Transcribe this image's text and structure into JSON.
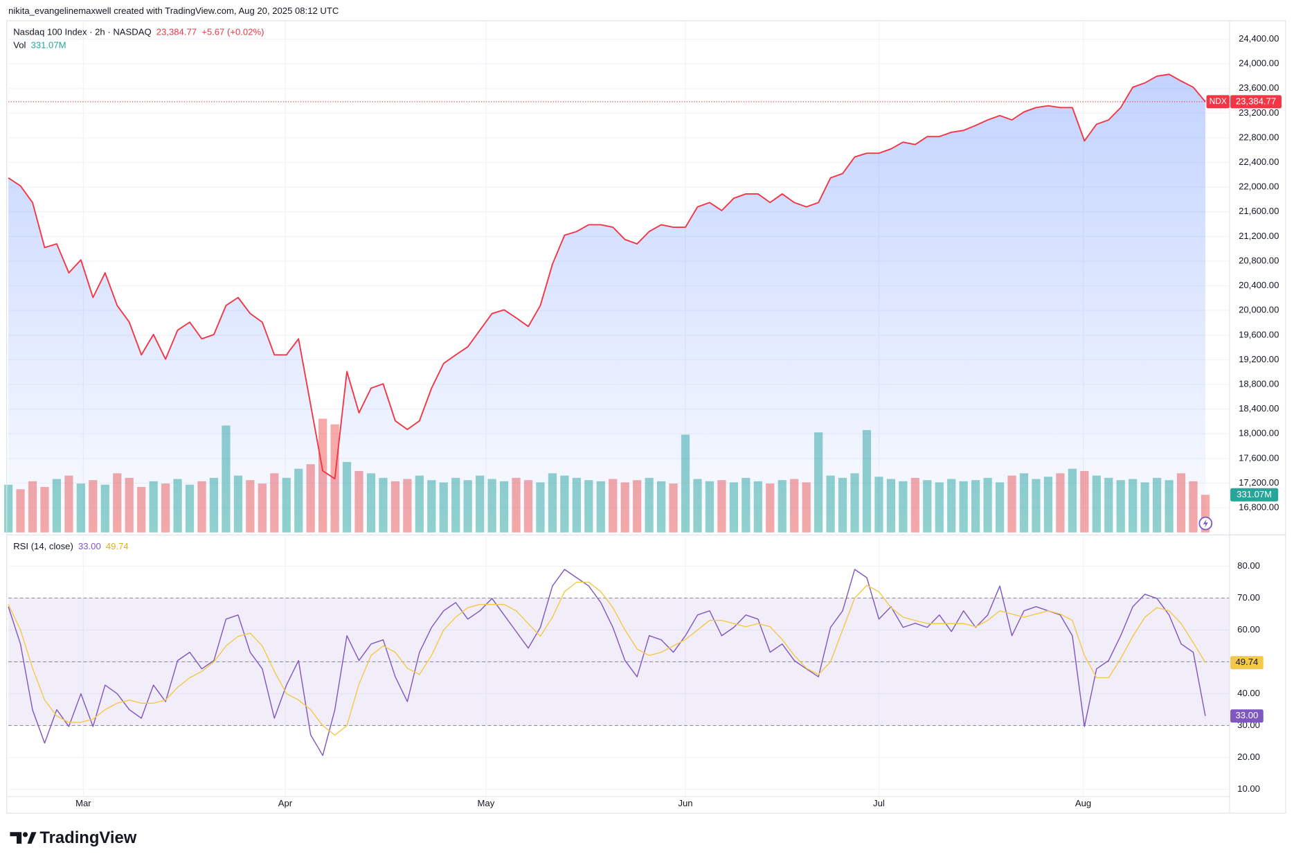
{
  "chart_data": {
    "type": "line",
    "creator": "nikita_evangelinemaxwell created with TradingView.com, Aug 20, 2025 08:12 UTC",
    "title": "Nasdaq 100 Index · 2h · NASDAQ",
    "brand": "TradingView",
    "xlim": [
      0,
      101
    ],
    "xticks": [
      {
        "value": 6.2,
        "label": "Mar"
      },
      {
        "value": 22.9,
        "label": "Apr"
      },
      {
        "value": 39.5,
        "label": "May"
      },
      {
        "value": 56.0,
        "label": "Jun"
      },
      {
        "value": 72.0,
        "label": "Jul"
      },
      {
        "value": 88.9,
        "label": "Aug"
      }
    ],
    "grid": true,
    "price": {
      "symbol": "NDX",
      "color": "#f23645",
      "area_color": "#2962ff",
      "last_label": "23,384.77",
      "change": "+5.67 (+0.02%)",
      "ylim": [
        16400,
        24700
      ],
      "yticks": [
        {
          "value": 16800,
          "label": "16,800.00"
        },
        {
          "value": 17200,
          "label": "17,200.00"
        },
        {
          "value": 17600,
          "label": "17,600.00"
        },
        {
          "value": 18000,
          "label": "18,000.00"
        },
        {
          "value": 18400,
          "label": "18,400.00"
        },
        {
          "value": 18800,
          "label": "18,800.00"
        },
        {
          "value": 19200,
          "label": "19,200.00"
        },
        {
          "value": 19600,
          "label": "19,600.00"
        },
        {
          "value": 20000,
          "label": "20,000.00"
        },
        {
          "value": 20400,
          "label": "20,400.00"
        },
        {
          "value": 20800,
          "label": "20,800.00"
        },
        {
          "value": 21200,
          "label": "21,200.00"
        },
        {
          "value": 21600,
          "label": "21,600.00"
        },
        {
          "value": 22000,
          "label": "22,000.00"
        },
        {
          "value": 22400,
          "label": "22,400.00"
        },
        {
          "value": 22800,
          "label": "22,800.00"
        },
        {
          "value": 23200,
          "label": "23,200.00"
        },
        {
          "value": 23600,
          "label": "23,600.00"
        },
        {
          "value": 24000,
          "label": "24,000.00"
        },
        {
          "value": 24400,
          "label": "24,400.00"
        }
      ],
      "values": [
        22150,
        22020,
        21750,
        21020,
        21080,
        20610,
        20820,
        20210,
        20610,
        20080,
        19810,
        19280,
        19610,
        19210,
        19680,
        19810,
        19540,
        19610,
        20080,
        20210,
        19950,
        19810,
        19280,
        19280,
        19540,
        18470,
        17400,
        17270,
        19010,
        18340,
        18740,
        18810,
        18210,
        18070,
        18210,
        18740,
        19140,
        19280,
        19410,
        19680,
        19950,
        20010,
        19880,
        19740,
        20080,
        20750,
        21220,
        21280,
        21390,
        21390,
        21350,
        21150,
        21080,
        21280,
        21390,
        21350,
        21350,
        21680,
        21750,
        21620,
        21820,
        21890,
        21890,
        21750,
        21890,
        21750,
        21680,
        21750,
        22150,
        22220,
        22490,
        22550,
        22550,
        22620,
        22730,
        22690,
        22820,
        22820,
        22890,
        22920,
        23000,
        23090,
        23160,
        23090,
        23220,
        23290,
        23320,
        23290,
        23290,
        22750,
        23020,
        23090,
        23290,
        23620,
        23690,
        23800,
        23830,
        23720,
        23620,
        23384.77
      ]
    },
    "volume": {
      "name": "Vol",
      "up_color": "#26a69a",
      "down_color": "#ef5350",
      "last_label": "331.07M",
      "ylim": [
        0,
        4500
      ],
      "values": [
        420,
        380,
        450,
        400,
        470,
        500,
        430,
        460,
        420,
        520,
        480,
        400,
        450,
        430,
        470,
        420,
        450,
        480,
        940,
        500,
        460,
        430,
        520,
        480,
        560,
        600,
        1000,
        950,
        620,
        540,
        520,
        480,
        450,
        470,
        500,
        460,
        440,
        480,
        460,
        500,
        470,
        450,
        480,
        460,
        440,
        520,
        500,
        480,
        460,
        450,
        470,
        440,
        460,
        480,
        450,
        430,
        860,
        470,
        450,
        460,
        440,
        480,
        450,
        430,
        460,
        470,
        440,
        880,
        500,
        480,
        520,
        900,
        490,
        470,
        450,
        480,
        460,
        440,
        470,
        450,
        460,
        480,
        440,
        500,
        520,
        470,
        490,
        520,
        560,
        540,
        500,
        480,
        460,
        470,
        440,
        480,
        460,
        520,
        450,
        331.07
      ]
    },
    "rsi": {
      "name": "RSI (14, close)",
      "ylim": [
        7.7,
        89.3
      ],
      "yticks": [
        {
          "value": 10,
          "label": "10.00"
        },
        {
          "value": 20,
          "label": "20.00"
        },
        {
          "value": 30,
          "label": "30.00"
        },
        {
          "value": 40,
          "label": "40.00"
        },
        {
          "value": 50,
          "label": "50.00"
        },
        {
          "value": 60,
          "label": "60.00"
        },
        {
          "value": 70,
          "label": "70.00"
        },
        {
          "value": 80,
          "label": "80.00"
        }
      ],
      "levels": [
        30,
        50,
        70
      ],
      "band_color": "#7e57c2",
      "series": [
        {
          "color": "#7e57c2",
          "last_label": "33.00",
          "values": [
            67.3,
            55.6,
            34.9,
            24.5,
            35,
            29.7,
            40,
            29.7,
            42.7,
            40,
            35,
            32.3,
            42.7,
            37.5,
            50.4,
            53,
            47.8,
            50.4,
            63.4,
            64.7,
            53,
            47.8,
            32.3,
            42.7,
            50.4,
            27.1,
            20.6,
            34.9,
            58.2,
            50.4,
            55.6,
            56.9,
            45.3,
            37.5,
            53,
            60.8,
            66,
            68.6,
            63.4,
            66,
            69.9,
            64.7,
            59.5,
            54.3,
            60.8,
            73.8,
            79,
            76.4,
            73.8,
            68.6,
            60.8,
            50.4,
            45.3,
            58.2,
            56.9,
            53,
            58.2,
            64.7,
            66,
            58.2,
            60.8,
            64.7,
            63.4,
            53,
            55.6,
            50.4,
            47.8,
            45.3,
            60.8,
            66,
            79,
            76.4,
            63.4,
            67.3,
            60.8,
            62.1,
            60.8,
            64.7,
            59.5,
            66,
            60.8,
            64.7,
            73.8,
            58.2,
            66,
            67.3,
            66,
            64.7,
            58.2,
            29.7,
            47.8,
            50.4,
            58.2,
            67.3,
            71.2,
            69.9,
            64.7,
            55.6,
            53,
            33
          ]
        },
        {
          "color": "#f2c94c",
          "last_label": "49.74",
          "values": [
            68,
            60,
            48,
            38,
            33,
            31,
            31,
            32,
            35,
            37,
            38,
            37,
            37,
            38,
            42,
            45,
            47,
            50,
            55,
            58,
            59,
            55,
            47,
            40,
            38,
            35,
            30,
            27,
            30,
            43,
            52,
            55,
            53,
            48,
            46,
            52,
            60,
            64,
            67,
            68,
            68,
            68,
            66,
            62,
            58,
            64,
            72,
            75,
            75,
            72,
            67,
            60,
            54,
            52,
            53,
            55,
            57,
            60,
            63,
            63,
            62,
            61,
            62,
            61,
            57,
            52,
            48,
            46,
            50,
            60,
            70,
            74,
            72,
            67,
            64,
            63,
            62,
            62,
            62,
            62,
            61,
            63,
            66,
            65,
            64,
            65,
            66,
            65,
            63,
            52,
            45,
            45,
            51,
            58,
            64,
            67,
            66,
            62,
            56,
            49.74
          ]
        }
      ]
    }
  }
}
